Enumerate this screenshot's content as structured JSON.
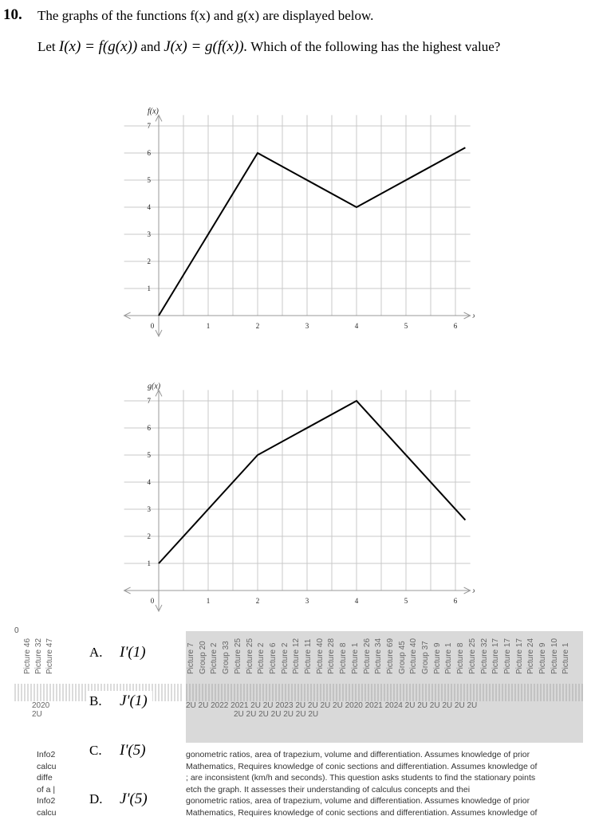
{
  "question": {
    "number": "10.",
    "line1": "The graphs of the functions f(x) and g(x) are displayed below.",
    "line2_prefix": "Let",
    "line2_I": "I(x) = f(g(x))",
    "line2_and": "and",
    "line2_J": "J(x) = g(f(x)).",
    "line2_suffix": "Which of the following has the highest value?"
  },
  "chart_data": [
    {
      "type": "line",
      "ylabel": "f(x)",
      "xlabel": "x",
      "xlim": [
        0,
        6.2
      ],
      "ylim": [
        0,
        7
      ],
      "x_ticks": [
        "0",
        "1",
        "2",
        "3",
        "4",
        "5",
        "6"
      ],
      "y_ticks": [
        "1",
        "2",
        "3",
        "4",
        "5",
        "6",
        "7"
      ],
      "grid": true,
      "series": [
        {
          "x": [
            0,
            2,
            4,
            6.2
          ],
          "y": [
            0,
            6,
            4,
            6.2
          ]
        }
      ]
    },
    {
      "type": "line",
      "ylabel": "g(x)",
      "xlabel": "x",
      "xlim": [
        0,
        6.2
      ],
      "ylim": [
        0,
        7
      ],
      "x_ticks": [
        "0",
        "1",
        "2",
        "3",
        "4",
        "5",
        "6"
      ],
      "y_ticks": [
        "1",
        "2",
        "3",
        "4",
        "5",
        "6",
        "7"
      ],
      "grid": true,
      "series": [
        {
          "x": [
            0,
            2,
            4,
            6.2
          ],
          "y": [
            1,
            5,
            7,
            2.6
          ]
        }
      ]
    }
  ],
  "options": [
    {
      "letter": "A.",
      "func": "I'",
      "arg": "(1)"
    },
    {
      "letter": "B.",
      "func": "J'",
      "arg": "(1)"
    },
    {
      "letter": "C.",
      "func": "I'",
      "arg": "(5)"
    },
    {
      "letter": "D.",
      "func": "J'",
      "arg": "(5)"
    }
  ],
  "overlay": {
    "zero": "0",
    "left_vertical": [
      "Picture 46",
      "Picture 32",
      "Picture 47"
    ],
    "vertical_labels": [
      "Picture 7",
      "Group 20",
      "Picture 2",
      "Group 33",
      "Picture 25",
      "Picture 25",
      "Picture 2",
      "Picture 6",
      "Picture 2",
      "Picture 12",
      "Picture 11",
      "Picture 40",
      "Picture 28",
      "Picture 8",
      "Picture 1",
      "Picture 26",
      "Picture 34",
      "Picture 69",
      "Group 45",
      "Picture 40",
      "Group 37",
      "Picture 9",
      "Picture 1",
      "Picture 8",
      "Picture 25",
      "Picture 32",
      "Picture 17",
      "Picture 17",
      "Picture 17",
      "Picture 24",
      "Picture 9",
      "Picture 10",
      "Picture 1"
    ],
    "scribble_left": "2020",
    "scribble_left2": "2U",
    "scribble_row": "2U 2U 2022 2021 2U 2U 2023 2U 2U 2U 2U 2020 2021 2024 2U 2U 2U 2U 2U 2U",
    "scribble_row2": "2U 2U 2U 2U 2U 2U 2U",
    "legend_lines": [
      "Info2",
      "calcu",
      "diffe",
      "of a |",
      "Info2",
      "calcu"
    ],
    "body_lines": [
      "gonometric ratios, area of trapezium, volume and differentiation.  Assumes knowledge of prior",
      "Mathematics, Requires knowledge of conic sections and differentiation.  Assumes knowledge of",
      "; are inconsistent (km/h and seconds).   This question asks students to find the stationary points",
      "etch the graph.  It assesses their understanding of calculus concepts and thei",
      "gonometric ratios, area of trapezium, volume and differentiation.  Assumes knowledge of prior",
      "Mathematics, Requires knowledge of conic sections and differentiation.  Assumes knowledge of"
    ]
  }
}
